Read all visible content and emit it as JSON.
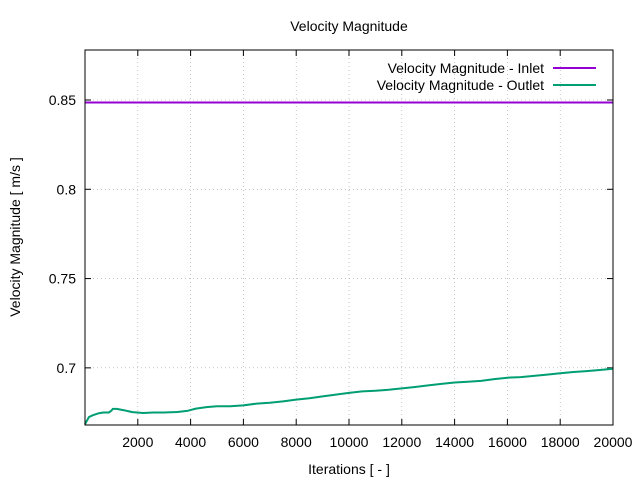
{
  "chart_data": {
    "type": "line",
    "title": "Velocity Magnitude",
    "xlabel": "Iterations [ - ]",
    "ylabel": "Velocity Magnitude [ m/s ]",
    "xlim": [
      0,
      20000
    ],
    "ylim": [
      0.668,
      0.878
    ],
    "xticks": [
      2000,
      4000,
      6000,
      8000,
      10000,
      12000,
      14000,
      16000,
      18000,
      20000
    ],
    "xtick_labels": [
      "2000",
      "4000",
      "6000",
      "8000",
      "10000",
      "12000",
      "14000",
      "16000",
      "18000",
      "20000"
    ],
    "yticks": [
      0.7,
      0.75,
      0.8,
      0.85
    ],
    "ytick_labels": [
      "0.7",
      "0.75",
      "0.8",
      "0.85"
    ],
    "grid": true,
    "legend_position": "top-right",
    "series": [
      {
        "name": "Velocity Magnitude - Inlet",
        "color": "#9400d3",
        "x": [
          0,
          20000
        ],
        "y": [
          0.8486,
          0.8486
        ]
      },
      {
        "name": "Velocity Magnitude - Outlet",
        "color": "#009e73",
        "x": [
          0,
          150,
          300,
          500,
          700,
          900,
          1000,
          1050,
          1200,
          1500,
          1800,
          2200,
          2600,
          3000,
          3500,
          3900,
          4200,
          4600,
          5000,
          5500,
          6000,
          6500,
          7000,
          7500,
          8000,
          8500,
          9000,
          9500,
          10000,
          10500,
          11000,
          11500,
          12000,
          12500,
          13000,
          13500,
          14000,
          14500,
          15000,
          15500,
          16000,
          16500,
          17000,
          17500,
          18000,
          18500,
          19000,
          19500,
          20000
        ],
        "y": [
          0.6685,
          0.6725,
          0.6735,
          0.6745,
          0.675,
          0.675,
          0.676,
          0.677,
          0.677,
          0.6762,
          0.6752,
          0.6747,
          0.675,
          0.675,
          0.6753,
          0.676,
          0.6772,
          0.678,
          0.6785,
          0.6785,
          0.679,
          0.68,
          0.6805,
          0.6812,
          0.6822,
          0.683,
          0.684,
          0.685,
          0.686,
          0.6868,
          0.6872,
          0.6877,
          0.6885,
          0.6893,
          0.6902,
          0.691,
          0.6918,
          0.6922,
          0.6927,
          0.6937,
          0.6945,
          0.6948,
          0.6955,
          0.6962,
          0.697,
          0.6977,
          0.6982,
          0.6988,
          0.6995
        ]
      }
    ]
  }
}
